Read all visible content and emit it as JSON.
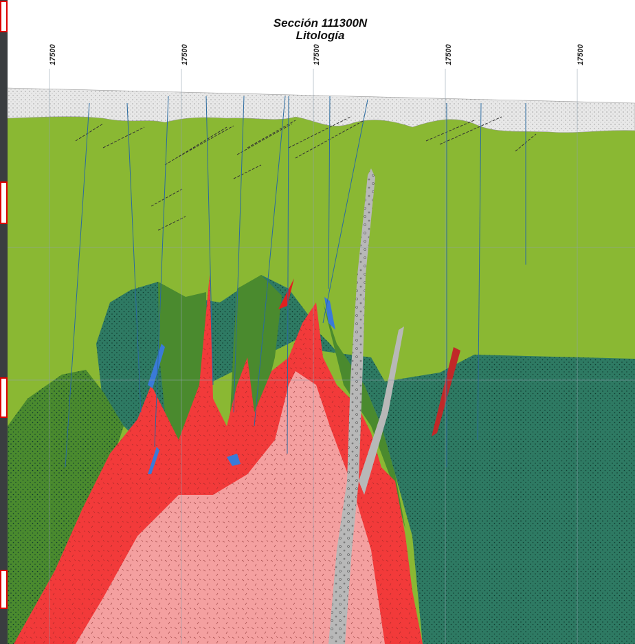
{
  "header": {
    "title": "Sección 111300N",
    "subtitle": "Litología"
  },
  "grid": {
    "labels": [
      "17500",
      "17500",
      "17500",
      "17500",
      "17500"
    ]
  }
}
